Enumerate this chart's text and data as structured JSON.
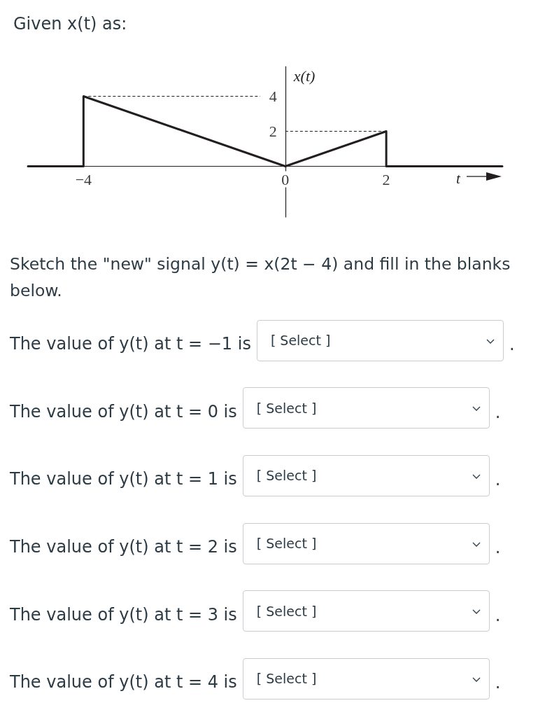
{
  "chart_data": {
    "type": "line",
    "title": "Given x(t) as:",
    "xlabel": "t",
    "ylabel": "x(t)",
    "xlim": [
      -5.1,
      4.3
    ],
    "ylim": [
      -2.9,
      5.7
    ],
    "xticks": [
      {
        "value": -4,
        "label": "−4"
      },
      0,
      2
    ],
    "yticks": [
      2,
      4
    ],
    "marker": "none",
    "grid": false,
    "series": [
      {
        "color": "#231f20",
        "x": [
          -5.1,
          -4,
          -4,
          0,
          2,
          2,
          4.3
        ],
        "values": [
          0,
          0,
          4,
          0,
          2,
          0,
          0
        ],
        "line_style": "solid"
      },
      {
        "color": "#231f20",
        "x": [
          -4,
          -0.5
        ],
        "values": [
          4,
          4
        ],
        "line_style": "dashed"
      },
      {
        "color": "#231f20",
        "x": [
          0,
          2
        ],
        "values": [
          2,
          2
        ],
        "line_style": "dashed"
      }
    ],
    "annotations": [
      "Sketch the \"new\" signal y(t) = x(2t − 4) and fill in the blanks below.",
      "The value of y(t) at t = −1 is",
      "[ Select ]",
      ".",
      "The value of y(t) at t = 0 is",
      "[ Select ]",
      ".",
      "The value of y(t) at t = 1 is",
      "[ Select ]",
      ".",
      "The value of y(t) at t = 2 is",
      "[ Select ]",
      ".",
      "The value of y(t) at t = 3 is",
      "[ Select ]",
      ".",
      "The value of y(t) at t = 4 is",
      "[ Select ]",
      "."
    ]
  }
}
